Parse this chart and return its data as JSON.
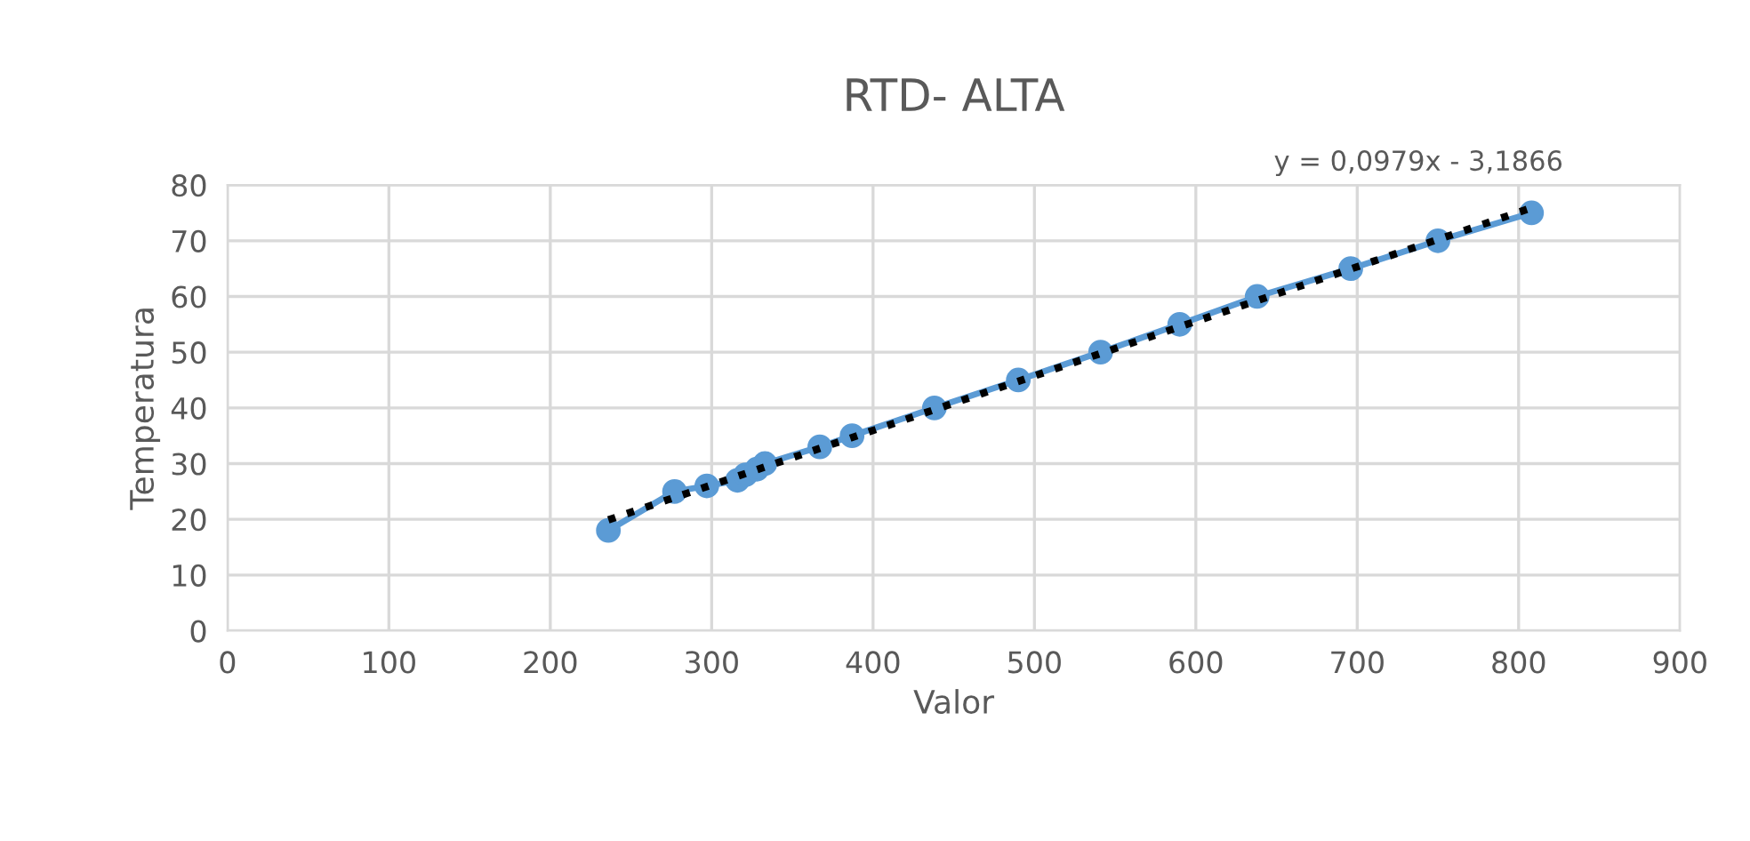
{
  "chart_data": {
    "type": "line",
    "title": "RTD- ALTA",
    "xlabel": "Valor",
    "ylabel": "Temperatura",
    "annotations": [
      "y = 0,0979x - 3,1866"
    ],
    "xlim": [
      0,
      900
    ],
    "xticks": [
      0,
      100,
      200,
      300,
      400,
      500,
      600,
      700,
      800,
      900
    ],
    "ylim": [
      0,
      80
    ],
    "yticks": [
      0,
      10,
      20,
      30,
      40,
      50,
      60,
      70,
      80
    ],
    "grid": true,
    "legend": false,
    "series": [
      {
        "marker": "circle",
        "line_style": "solid",
        "color": "#5b9bd5",
        "x": [
          236,
          277,
          297,
          316,
          321,
          328,
          333,
          367,
          387,
          438,
          490,
          541,
          590,
          638,
          696,
          750,
          808
        ],
        "values": [
          18,
          25,
          26,
          27,
          28,
          29,
          30,
          33,
          35,
          40,
          45,
          50,
          55,
          60,
          65,
          70,
          75
        ]
      },
      {
        "marker": "none",
        "line_style": "dotted",
        "color": "#000000",
        "x": [
          236,
          808
        ],
        "values": [
          19.9,
          75.9
        ]
      }
    ]
  }
}
